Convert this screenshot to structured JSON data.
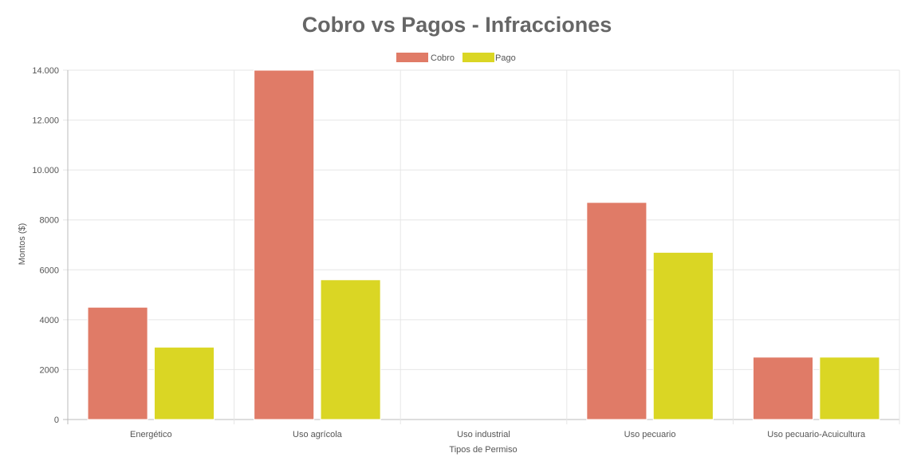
{
  "chart_data": {
    "type": "bar",
    "title": "Cobro vs Pagos - Infracciones",
    "xlabel": "Tipos de Permiso",
    "ylabel": "Montos ($)",
    "categories": [
      "Energético",
      "Uso agrícola",
      "Uso industrial",
      "Uso pecuario",
      "Uso pecuario-Acuicultura"
    ],
    "series": [
      {
        "name": "Cobro",
        "values": [
          4500,
          14000,
          0,
          8700,
          2500
        ],
        "color": "#e07b67"
      },
      {
        "name": "Pago",
        "values": [
          2900,
          5600,
          0,
          6700,
          2500
        ],
        "color": "#dad624"
      }
    ],
    "ylim": [
      0,
      14000
    ],
    "yticks": [
      0,
      2000,
      4000,
      6000,
      8000,
      10000,
      12000,
      14000
    ],
    "ytick_labels": [
      "0",
      "2000",
      "4000",
      "6000",
      "8000",
      "10.000",
      "12.000",
      "14.000"
    ],
    "grid": true,
    "legend_position": "top"
  }
}
